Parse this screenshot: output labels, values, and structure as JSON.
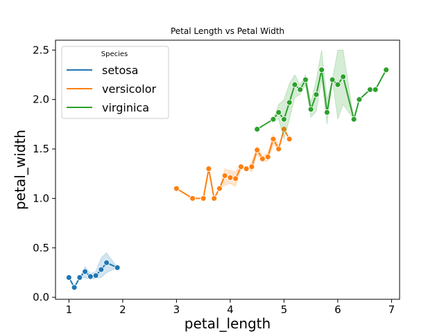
{
  "chart_data": {
    "type": "line",
    "title": "Petal Length vs Petal Width",
    "xlabel": "petal_length",
    "ylabel": "petal_width",
    "xlim": [
      0.75,
      7.15
    ],
    "ylim": [
      -0.02,
      2.6
    ],
    "xticks": [
      "1",
      "2",
      "3",
      "4",
      "5",
      "6",
      "7"
    ],
    "yticks": [
      "0.0",
      "0.5",
      "1.0",
      "1.5",
      "2.0",
      "2.5"
    ],
    "grid": false,
    "legend": {
      "title": "Species",
      "placement": "top-left"
    },
    "series": [
      {
        "name": "setosa",
        "color": "#1f77b4",
        "x": [
          1.0,
          1.1,
          1.2,
          1.3,
          1.4,
          1.5,
          1.6,
          1.7,
          1.9
        ],
        "y": [
          0.2,
          0.1,
          0.2,
          0.26,
          0.21,
          0.22,
          0.28,
          0.35,
          0.3
        ],
        "ci_low": [
          0.2,
          0.1,
          0.2,
          0.2,
          0.18,
          0.19,
          0.2,
          0.25,
          0.3
        ],
        "ci_high": [
          0.2,
          0.1,
          0.2,
          0.31,
          0.24,
          0.26,
          0.4,
          0.45,
          0.3
        ]
      },
      {
        "name": "versicolor",
        "color": "#ff7f0e",
        "x": [
          3.0,
          3.3,
          3.5,
          3.6,
          3.7,
          3.8,
          3.9,
          4.0,
          4.1,
          4.2,
          4.3,
          4.4,
          4.5,
          4.6,
          4.7,
          4.8,
          4.9,
          5.0,
          5.1
        ],
        "y": [
          1.1,
          1.0,
          1.0,
          1.3,
          1.0,
          1.1,
          1.23,
          1.21,
          1.2,
          1.32,
          1.3,
          1.32,
          1.49,
          1.4,
          1.42,
          1.6,
          1.5,
          1.7,
          1.6
        ],
        "ci_low": [
          1.1,
          1.0,
          1.0,
          1.3,
          1.0,
          1.1,
          1.13,
          1.15,
          1.12,
          1.3,
          1.3,
          1.27,
          1.45,
          1.37,
          1.38,
          1.55,
          1.48,
          1.7,
          1.6
        ],
        "ci_high": [
          1.1,
          1.0,
          1.0,
          1.3,
          1.0,
          1.1,
          1.3,
          1.28,
          1.27,
          1.35,
          1.3,
          1.37,
          1.53,
          1.43,
          1.46,
          1.65,
          1.53,
          1.7,
          1.6
        ]
      },
      {
        "name": "virginica",
        "color": "#2ca02c",
        "x": [
          4.5,
          4.8,
          4.9,
          5.0,
          5.1,
          5.2,
          5.3,
          5.4,
          5.5,
          5.6,
          5.7,
          5.8,
          5.9,
          6.0,
          6.1,
          6.3,
          6.4,
          6.6,
          6.7,
          6.9
        ],
        "y": [
          1.7,
          1.8,
          1.87,
          1.8,
          1.97,
          2.15,
          2.1,
          2.2,
          1.9,
          2.05,
          2.3,
          1.87,
          2.2,
          2.15,
          2.23,
          1.8,
          2.0,
          2.1,
          2.1,
          2.3
        ],
        "ci_low": [
          1.7,
          1.8,
          1.8,
          1.6,
          1.8,
          2.02,
          2.05,
          2.15,
          1.82,
          1.88,
          2.2,
          1.75,
          2.2,
          1.8,
          1.95,
          1.8,
          2.0,
          2.1,
          2.1,
          2.3
        ],
        "ci_high": [
          1.7,
          1.8,
          1.95,
          2.0,
          2.16,
          2.25,
          2.15,
          2.25,
          1.97,
          2.2,
          2.5,
          2.0,
          2.2,
          2.5,
          2.5,
          1.8,
          2.0,
          2.1,
          2.1,
          2.3
        ]
      }
    ]
  }
}
